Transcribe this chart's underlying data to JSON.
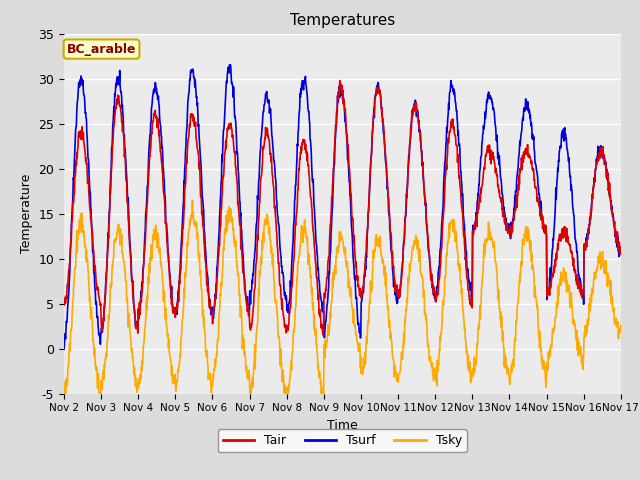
{
  "title": "Temperatures",
  "xlabel": "Time",
  "ylabel": "Temperature",
  "ylim": [
    -5,
    35
  ],
  "xlim_days": [
    0,
    15
  ],
  "annotation": "BC_arable",
  "legend": [
    "Tair",
    "Tsurf",
    "Tsky"
  ],
  "colors": {
    "Tair": "#dd0000",
    "Tsurf": "#0000dd",
    "Tsky": "#ffaa00"
  },
  "linewidth": 1.2,
  "fig_bg": "#dcdcdc",
  "plot_bg": "#ebebeb",
  "xtick_labels": [
    "Nov 2",
    "Nov 3",
    "Nov 4",
    "Nov 5",
    "Nov 6",
    "Nov 7",
    "Nov 8",
    "Nov 9",
    "Nov 10",
    "Nov 11",
    "Nov 12",
    "Nov 13",
    "Nov 14",
    "Nov 15",
    "Nov 16",
    "Nov 17"
  ],
  "xtick_positions": [
    0,
    1,
    2,
    3,
    4,
    5,
    6,
    7,
    8,
    9,
    10,
    11,
    12,
    13,
    14,
    15
  ],
  "ytick_labels": [
    "-5",
    "0",
    "5",
    "10",
    "15",
    "20",
    "25",
    "30",
    "35"
  ],
  "ytick_positions": [
    -5,
    0,
    5,
    10,
    15,
    20,
    25,
    30,
    35
  ]
}
